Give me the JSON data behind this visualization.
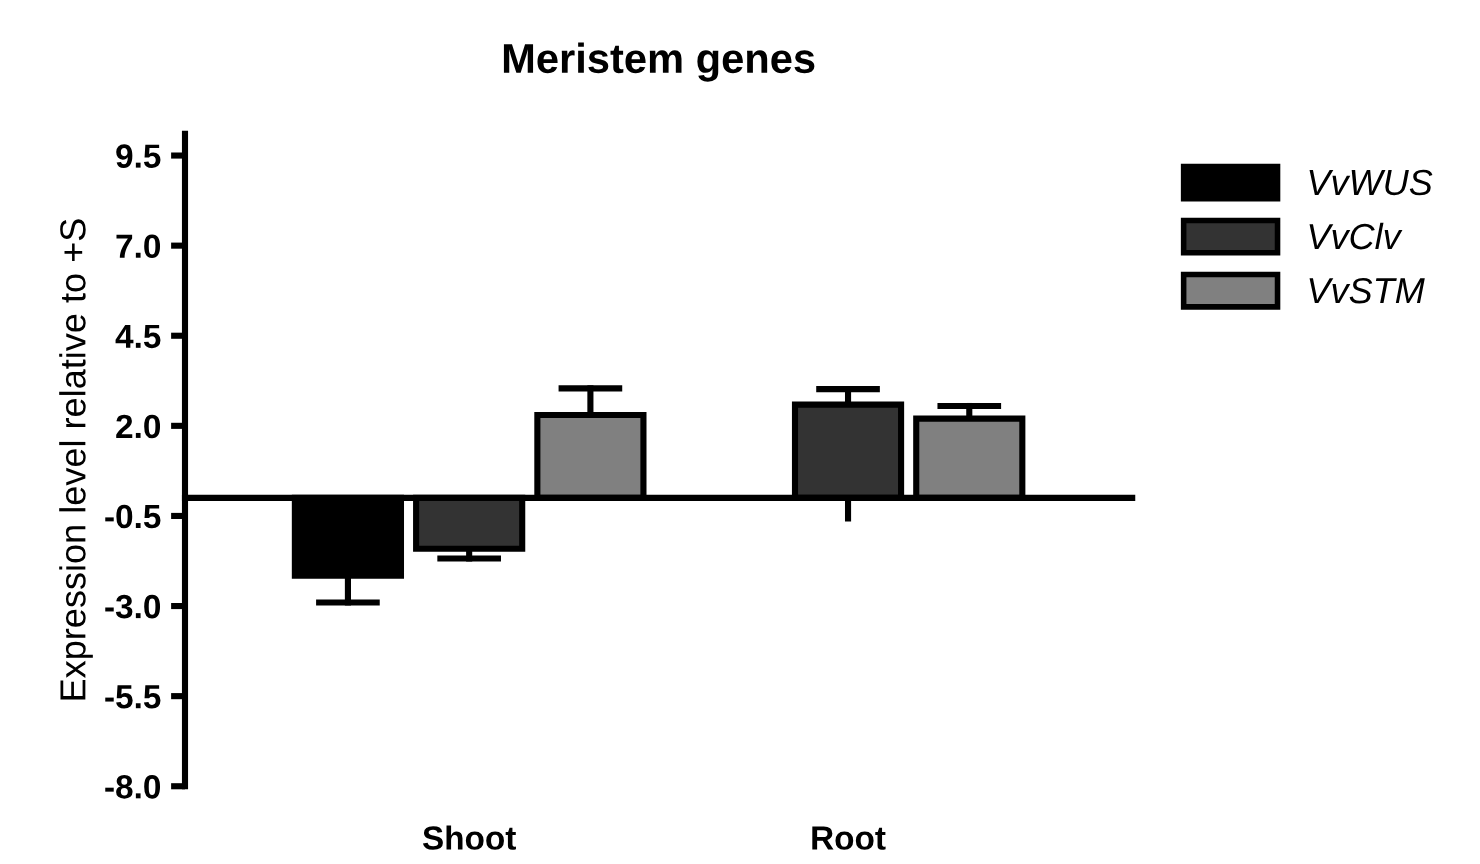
{
  "chart_data": {
    "type": "bar",
    "title": "Meristem genes",
    "ylabel": "Expression level relative to +S",
    "categories": [
      "Shoot",
      "Root"
    ],
    "series": [
      {
        "name": "VvWUS",
        "color": "#000000",
        "values": [
          -2.16,
          null
        ],
        "errors": [
          0.74,
          null
        ]
      },
      {
        "name": "VvClv",
        "color": "#333333",
        "values": [
          -1.41,
          2.59
        ],
        "errors": [
          0.27,
          [
            -0.57,
            3.02
          ]
        ]
      },
      {
        "name": "VvSTM",
        "color": "#808080",
        "values": [
          2.3,
          2.2
        ],
        "errors": [
          0.74,
          0.35
        ]
      }
    ],
    "ylim": [
      -8.0,
      10.1
    ],
    "yticks": [
      {
        "value": 9.5,
        "label": "9.5"
      },
      {
        "value": 7,
        "label": "7.0"
      },
      {
        "value": 4.5,
        "label": "4.5"
      },
      {
        "value": 2,
        "label": "2.0"
      },
      {
        "value": -0.5,
        "label": "-0.5"
      },
      {
        "value": -3,
        "label": "-3.0"
      },
      {
        "value": -5.5,
        "label": "-5.5"
      },
      {
        "value": -8,
        "label": "-8.0"
      }
    ],
    "grid": false,
    "legend": "top right"
  }
}
